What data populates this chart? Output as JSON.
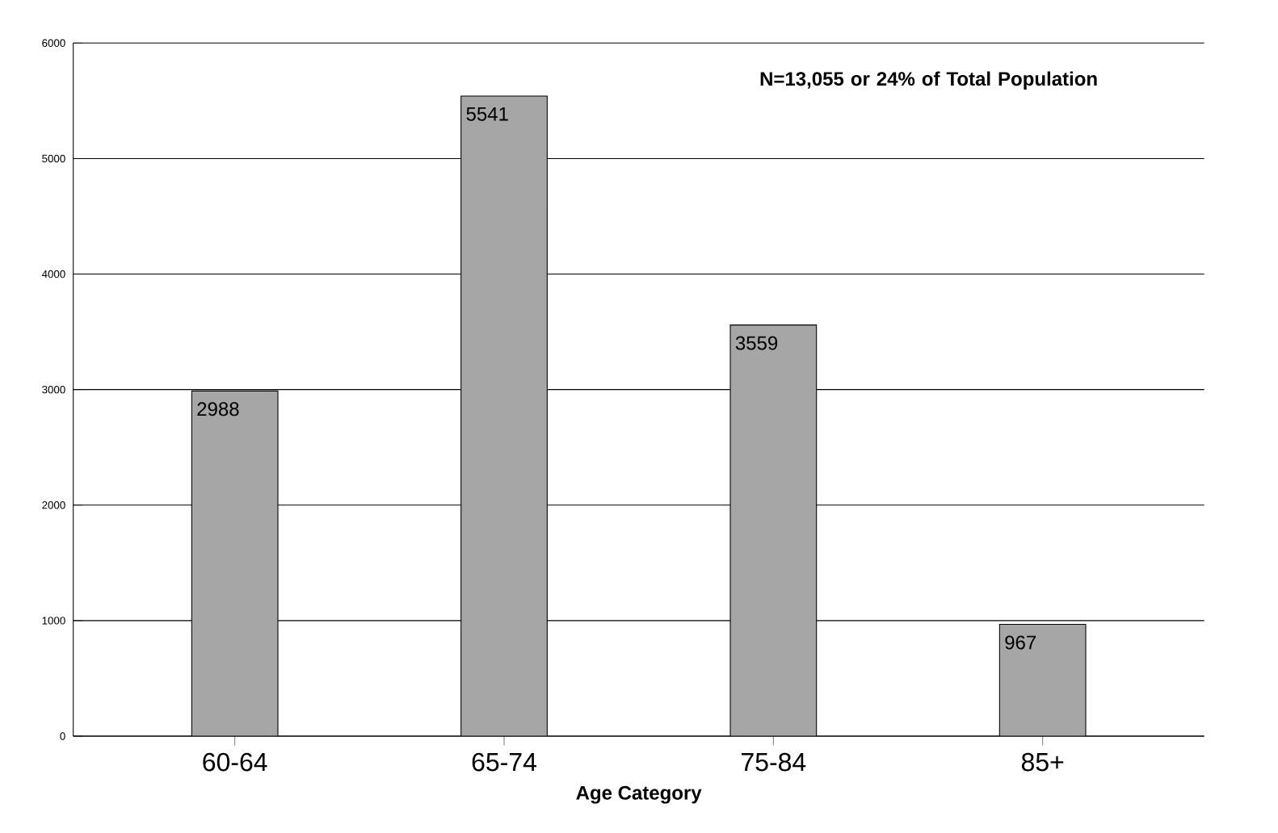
{
  "chart_data": {
    "type": "bar",
    "xlabel": "Age Category",
    "categories": [
      "60-64",
      "65-74",
      "75-84",
      "85+"
    ],
    "values": [
      2988,
      5541,
      3559,
      967
    ],
    "color": "#a6a6a6",
    "data_labels": true,
    "ylim": [
      0,
      6000
    ],
    "yticks": [
      0,
      1000,
      2000,
      3000,
      4000,
      5000,
      6000
    ],
    "grid": "y",
    "annotations": [
      "N=13,055 or 24% of Total Population"
    ]
  }
}
